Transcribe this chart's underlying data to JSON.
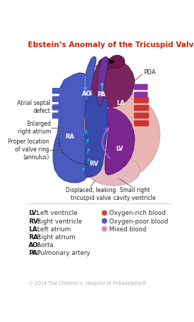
{
  "title": "Ebstein’s Anomaly of the Tricuspid Valve",
  "title_color": "#cc2200",
  "title_fontsize": 7.5,
  "bg_color": "#ffffff",
  "legend_left": [
    {
      "bold": "LV:",
      "rest": " Left ventricle"
    },
    {
      "bold": "RV:",
      "rest": " Right ventricle"
    },
    {
      "bold": "LA:",
      "rest": " Left atrium"
    },
    {
      "bold": "RA:",
      "rest": " Right atrium"
    },
    {
      "bold": "AO:",
      "rest": " Aorta"
    },
    {
      "bold": "PA:",
      "rest": " Pulmonary artery"
    }
  ],
  "legend_right": [
    {
      "color": "#e84040",
      "label": "Oxygen-rich blood"
    },
    {
      "color": "#5555bb",
      "label": "Oxygen-poor blood"
    },
    {
      "color": "#dd88bb",
      "label": "Mixed blood"
    }
  ],
  "copyright": "© 2014 The Children’s  Hospital of Philadelphia®",
  "heart": {
    "pericardium_color": "#e8b0b0",
    "ra_color": "#4a5abf",
    "la_color": "#7a2560",
    "rv_color": "#3a4aaa",
    "lv_color": "#7a2590",
    "ao_color": "#4a5abf",
    "pa_color": "#6a3598",
    "vessel_blue": "#4a5abf",
    "vessel_red": "#cc3333",
    "vessel_purple": "#8833aa",
    "arrow_cyan": "#00bbcc",
    "arrow_purple": "#9944cc"
  }
}
